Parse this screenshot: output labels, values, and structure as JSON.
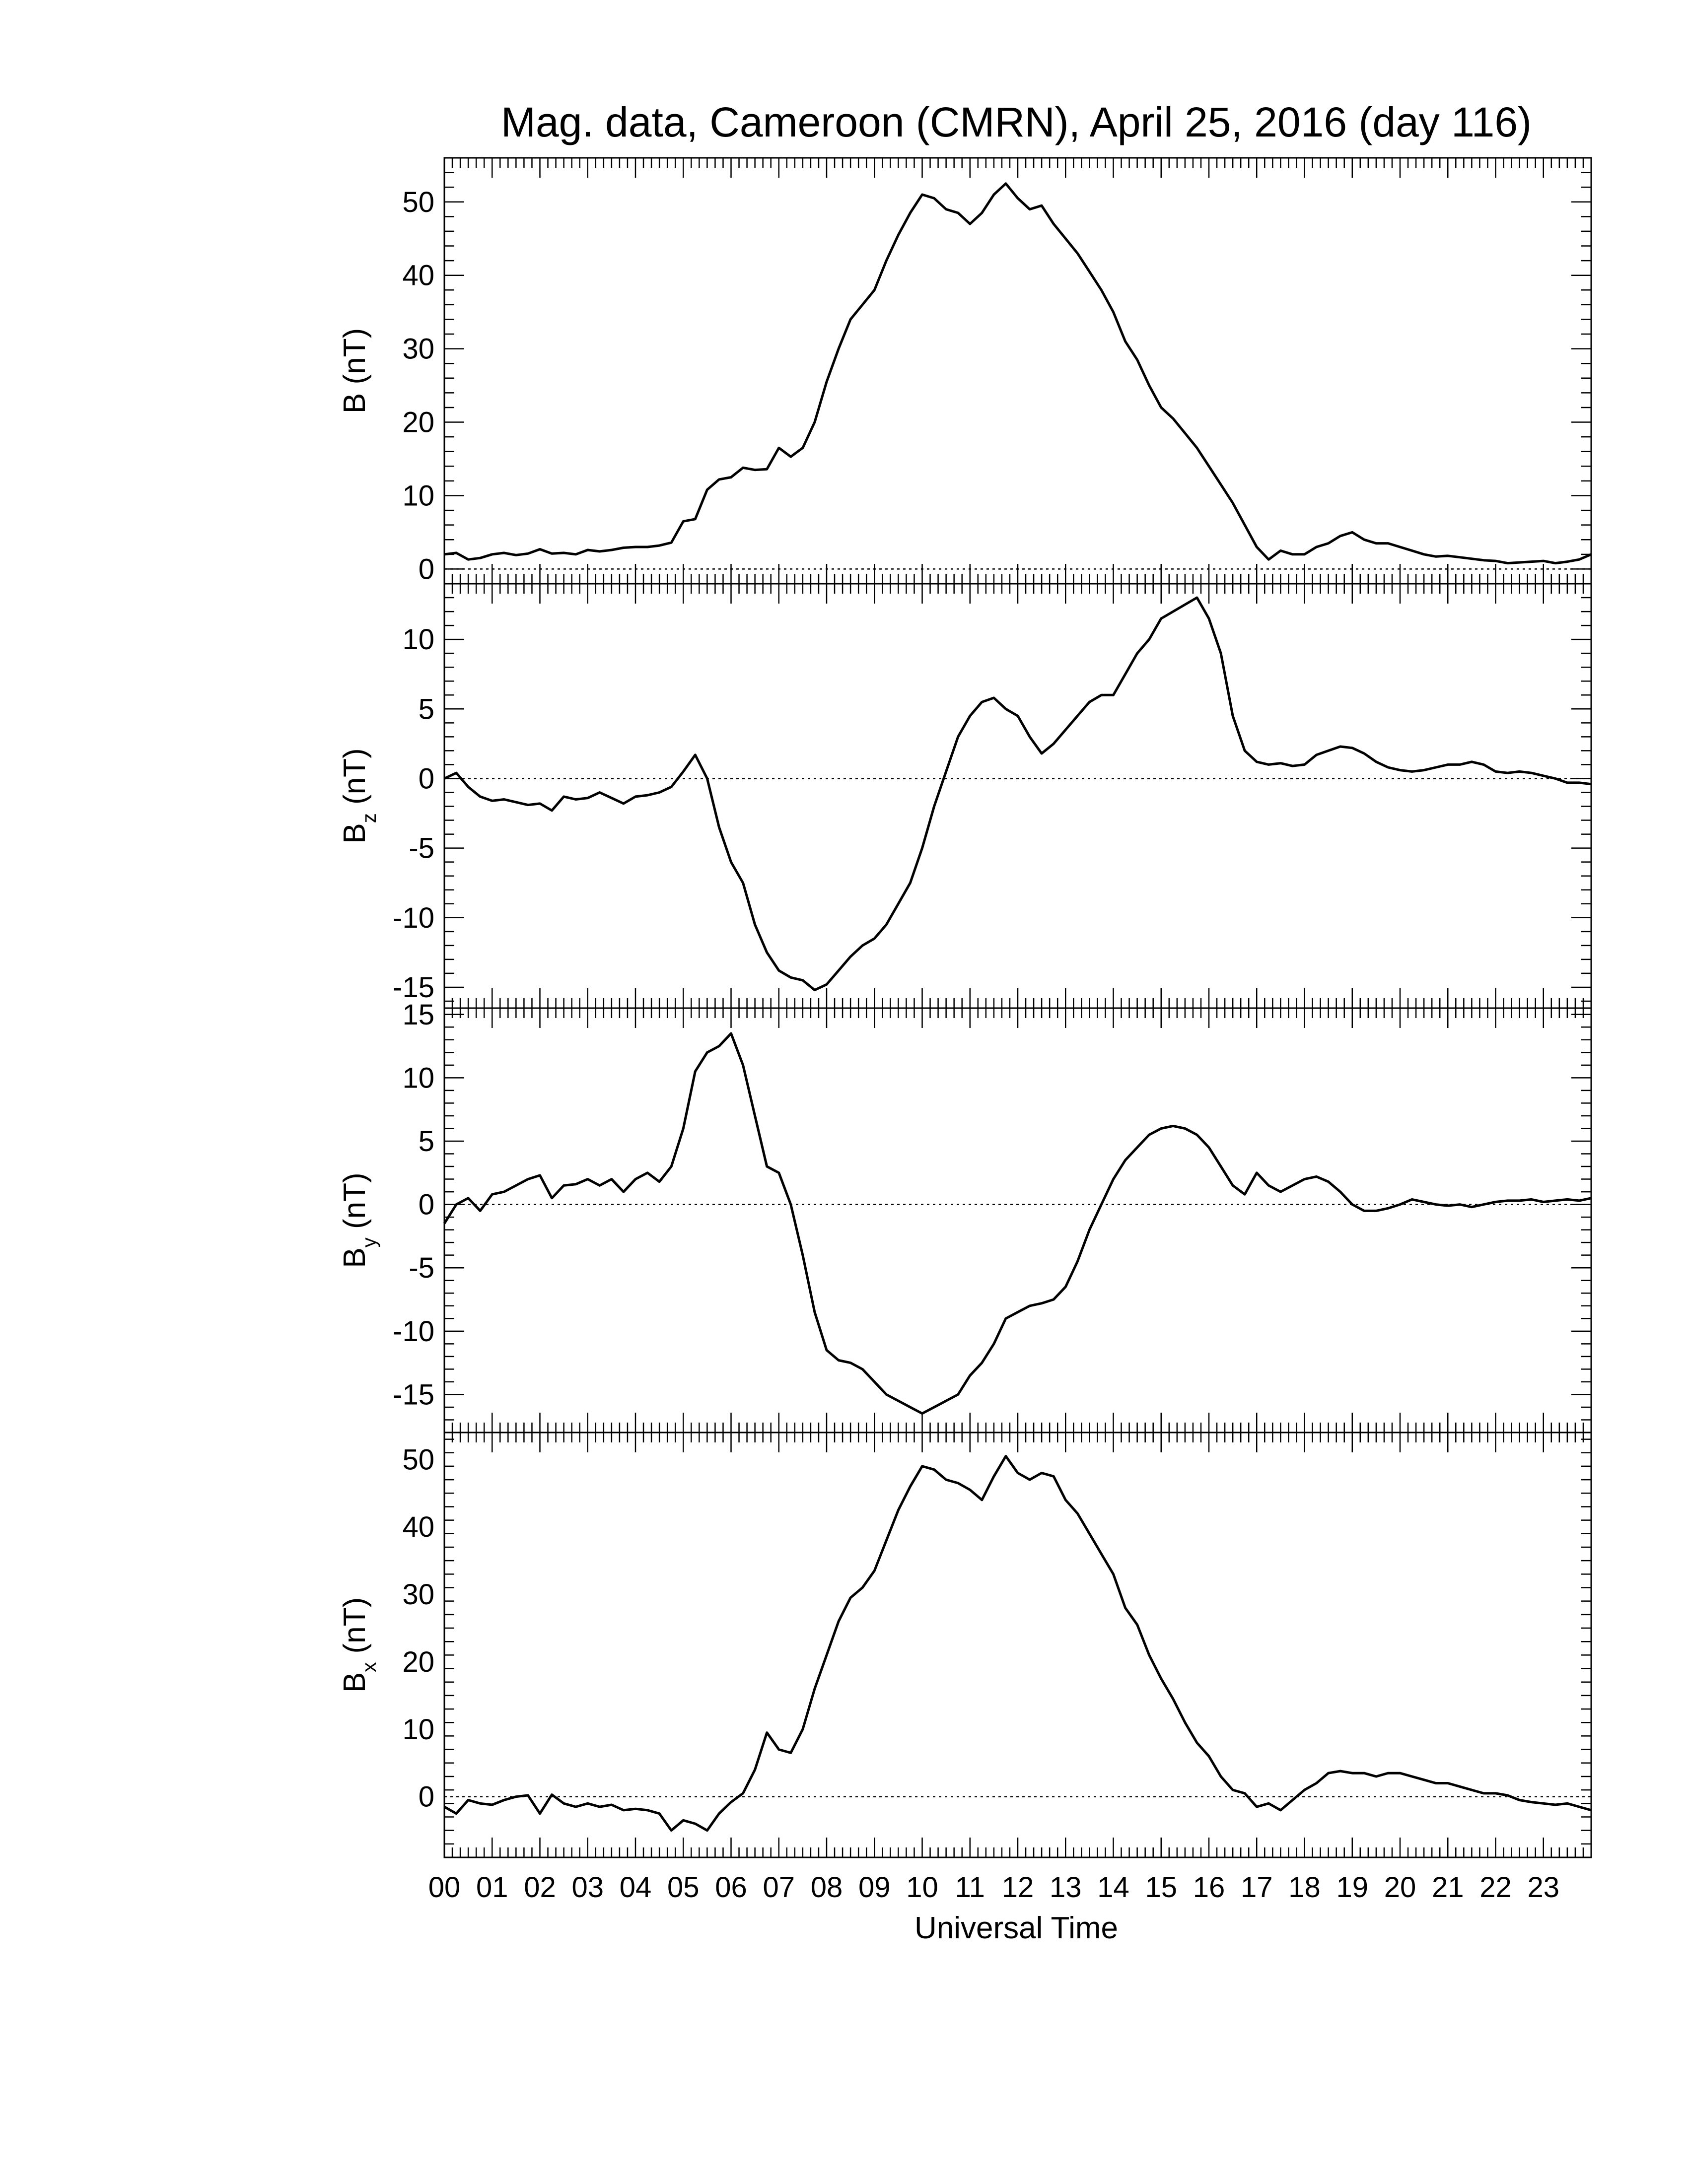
{
  "figure": {
    "title": "Mag. data, Cameroon (CMRN), April 25, 2016 (day 116)",
    "xlabel": "Universal Time",
    "x_tick_labels": [
      "00",
      "01",
      "02",
      "03",
      "04",
      "05",
      "06",
      "07",
      "08",
      "09",
      "10",
      "11",
      "12",
      "13",
      "14",
      "15",
      "16",
      "17",
      "18",
      "19",
      "20",
      "21",
      "22",
      "23"
    ]
  },
  "chart_data": [
    {
      "type": "line",
      "ylabel": "B (nT)",
      "ylabel_main": "B",
      "ylabel_sub": "",
      "ylabel_unit": " (nT)",
      "xlim": [
        0,
        24
      ],
      "ylim": [
        -2,
        56
      ],
      "yticks": [
        0,
        10,
        20,
        30,
        40,
        50
      ],
      "zero_line": true,
      "x": [
        0,
        0.25,
        0.5,
        0.75,
        1,
        1.25,
        1.5,
        1.75,
        2,
        2.25,
        2.5,
        2.75,
        3,
        3.25,
        3.5,
        3.75,
        4,
        4.25,
        4.5,
        4.75,
        5,
        5.25,
        5.5,
        5.75,
        6,
        6.25,
        6.5,
        6.75,
        7,
        7.25,
        7.5,
        7.75,
        8,
        8.25,
        8.5,
        8.75,
        9,
        9.25,
        9.5,
        9.75,
        10,
        10.25,
        10.5,
        10.75,
        11,
        11.25,
        11.5,
        11.75,
        12,
        12.25,
        12.5,
        12.75,
        13,
        13.25,
        13.5,
        13.75,
        14,
        14.25,
        14.5,
        14.75,
        15,
        15.25,
        15.5,
        15.75,
        16,
        16.25,
        16.5,
        16.75,
        17,
        17.25,
        17.5,
        17.75,
        18,
        18.25,
        18.5,
        18.75,
        19,
        19.25,
        19.5,
        19.75,
        20,
        20.25,
        20.5,
        20.75,
        21,
        21.25,
        21.5,
        21.75,
        22,
        22.25,
        22.5,
        22.75,
        23,
        23.25,
        23.5,
        23.75,
        24
      ],
      "series": [
        {
          "values": [
            2.0,
            2.2,
            1.3,
            1.5,
            2.0,
            2.2,
            1.9,
            2.1,
            2.7,
            2.1,
            2.2,
            2.0,
            2.6,
            2.4,
            2.6,
            2.9,
            3.0,
            3.0,
            3.2,
            3.6,
            6.5,
            6.8,
            10.8,
            12.2,
            12.5,
            13.8,
            13.5,
            13.6,
            16.5,
            15.3,
            16.5,
            20.0,
            25.5,
            30.0,
            34.0,
            36.0,
            38.0,
            42.0,
            45.5,
            48.5,
            51.0,
            50.5,
            49.0,
            48.5,
            47.0,
            48.5,
            51.0,
            52.5,
            50.5,
            49.0,
            49.5,
            47.0,
            45.0,
            43.0,
            40.5,
            38.0,
            35.0,
            31.0,
            28.5,
            25.0,
            22.0,
            20.5,
            18.5,
            16.5,
            14.0,
            11.5,
            9.0,
            6.0,
            3.0,
            1.3,
            2.5,
            2.0,
            2.0,
            3.0,
            3.5,
            4.5,
            5.0,
            4.0,
            3.5,
            3.5,
            3.0,
            2.5,
            2.0,
            1.7,
            1.8,
            1.6,
            1.4,
            1.2,
            1.1,
            0.8,
            0.9,
            1.0,
            1.1,
            0.8,
            1.0,
            1.3,
            2.0
          ]
        }
      ]
    },
    {
      "type": "line",
      "ylabel": "Bz (nT)",
      "ylabel_main": "B",
      "ylabel_sub": "z",
      "ylabel_unit": " (nT)",
      "xlim": [
        0,
        24
      ],
      "ylim": [
        -16.5,
        14
      ],
      "yticks": [
        -15,
        -10,
        -5,
        0,
        5,
        10
      ],
      "zero_line": true,
      "x": [
        0,
        0.25,
        0.5,
        0.75,
        1,
        1.25,
        1.5,
        1.75,
        2,
        2.25,
        2.5,
        2.75,
        3,
        3.25,
        3.5,
        3.75,
        4,
        4.25,
        4.5,
        4.75,
        5,
        5.25,
        5.5,
        5.75,
        6,
        6.25,
        6.5,
        6.75,
        7,
        7.25,
        7.5,
        7.75,
        8,
        8.25,
        8.5,
        8.75,
        9,
        9.25,
        9.5,
        9.75,
        10,
        10.25,
        10.5,
        10.75,
        11,
        11.25,
        11.5,
        11.75,
        12,
        12.25,
        12.5,
        12.75,
        13,
        13.25,
        13.5,
        13.75,
        14,
        14.25,
        14.5,
        14.75,
        15,
        15.25,
        15.5,
        15.75,
        16,
        16.25,
        16.5,
        16.75,
        17,
        17.25,
        17.5,
        17.75,
        18,
        18.25,
        18.5,
        18.75,
        19,
        19.25,
        19.5,
        19.75,
        20,
        20.25,
        20.5,
        20.75,
        21,
        21.25,
        21.5,
        21.75,
        22,
        22.25,
        22.5,
        22.75,
        23,
        23.25,
        23.5,
        23.75,
        24
      ],
      "series": [
        {
          "values": [
            0.0,
            0.4,
            -0.6,
            -1.3,
            -1.6,
            -1.5,
            -1.7,
            -1.9,
            -1.8,
            -2.3,
            -1.3,
            -1.5,
            -1.4,
            -1.0,
            -1.4,
            -1.8,
            -1.3,
            -1.2,
            -1.0,
            -0.6,
            0.5,
            1.7,
            0.0,
            -3.5,
            -6.0,
            -7.5,
            -10.5,
            -12.5,
            -13.8,
            -14.3,
            -14.5,
            -15.2,
            -14.8,
            -13.8,
            -12.8,
            -12.0,
            -11.5,
            -10.5,
            -9.0,
            -7.5,
            -5.0,
            -2.0,
            0.5,
            3.0,
            4.5,
            5.5,
            5.8,
            5.0,
            4.5,
            3.0,
            1.8,
            2.5,
            3.5,
            4.5,
            5.5,
            6.0,
            6.0,
            7.5,
            9.0,
            10.0,
            11.5,
            12.0,
            12.5,
            13.0,
            11.5,
            9.0,
            4.5,
            2.0,
            1.2,
            1.0,
            1.1,
            0.9,
            1.0,
            1.7,
            2.0,
            2.3,
            2.2,
            1.8,
            1.2,
            0.8,
            0.6,
            0.5,
            0.6,
            0.8,
            1.0,
            1.0,
            1.2,
            1.0,
            0.5,
            0.4,
            0.5,
            0.4,
            0.2,
            0.0,
            -0.3,
            -0.3,
            -0.4
          ]
        }
      ]
    },
    {
      "type": "line",
      "ylabel": "By (nT)",
      "ylabel_main": "B",
      "ylabel_sub": "y",
      "ylabel_unit": " (nT)",
      "xlim": [
        0,
        24
      ],
      "ylim": [
        -18,
        15.5
      ],
      "yticks": [
        -15,
        -10,
        -5,
        0,
        5,
        10,
        15
      ],
      "zero_line": true,
      "x": [
        0,
        0.25,
        0.5,
        0.75,
        1,
        1.25,
        1.5,
        1.75,
        2,
        2.25,
        2.5,
        2.75,
        3,
        3.25,
        3.5,
        3.75,
        4,
        4.25,
        4.5,
        4.75,
        5,
        5.25,
        5.5,
        5.75,
        6,
        6.25,
        6.5,
        6.75,
        7,
        7.25,
        7.5,
        7.75,
        8,
        8.25,
        8.5,
        8.75,
        9,
        9.25,
        9.5,
        9.75,
        10,
        10.25,
        10.5,
        10.75,
        11,
        11.25,
        11.5,
        11.75,
        12,
        12.25,
        12.5,
        12.75,
        13,
        13.25,
        13.5,
        13.75,
        14,
        14.25,
        14.5,
        14.75,
        15,
        15.25,
        15.5,
        15.75,
        16,
        16.25,
        16.5,
        16.75,
        17,
        17.25,
        17.5,
        17.75,
        18,
        18.25,
        18.5,
        18.75,
        19,
        19.25,
        19.5,
        19.75,
        20,
        20.25,
        20.5,
        20.75,
        21,
        21.25,
        21.5,
        21.75,
        22,
        22.25,
        22.5,
        22.75,
        23,
        23.25,
        23.5,
        23.75,
        24
      ],
      "series": [
        {
          "values": [
            -1.5,
            0.0,
            0.5,
            -0.5,
            0.8,
            1.0,
            1.5,
            2.0,
            2.3,
            0.5,
            1.5,
            1.6,
            2.0,
            1.5,
            2.0,
            1.0,
            2.0,
            2.5,
            1.8,
            3.0,
            6.0,
            10.5,
            12.0,
            12.5,
            13.5,
            11.0,
            7.0,
            3.0,
            2.5,
            0.0,
            -4.0,
            -8.5,
            -11.5,
            -12.3,
            -12.5,
            -13.0,
            -14.0,
            -15.0,
            -15.5,
            -16.0,
            -16.5,
            -16.0,
            -15.5,
            -15.0,
            -13.5,
            -12.5,
            -11.0,
            -9.0,
            -8.5,
            -8.0,
            -7.8,
            -7.5,
            -6.5,
            -4.5,
            -2.0,
            0.0,
            2.0,
            3.5,
            4.5,
            5.5,
            6.0,
            6.2,
            6.0,
            5.5,
            4.5,
            3.0,
            1.5,
            0.8,
            2.5,
            1.5,
            1.0,
            1.5,
            2.0,
            2.2,
            1.8,
            1.0,
            0.0,
            -0.5,
            -0.5,
            -0.3,
            0.0,
            0.4,
            0.2,
            0.0,
            -0.1,
            0.0,
            -0.2,
            0.0,
            0.2,
            0.3,
            0.3,
            0.4,
            0.2,
            0.3,
            0.4,
            0.3,
            0.5
          ]
        }
      ]
    },
    {
      "type": "line",
      "ylabel": "Bx (nT)",
      "ylabel_main": "B",
      "ylabel_sub": "x",
      "ylabel_unit": " (nT)",
      "xlim": [
        0,
        24
      ],
      "ylim": [
        -9,
        54
      ],
      "yticks": [
        0,
        10,
        20,
        30,
        40,
        50
      ],
      "zero_line": true,
      "x": [
        0,
        0.25,
        0.5,
        0.75,
        1,
        1.25,
        1.5,
        1.75,
        2,
        2.25,
        2.5,
        2.75,
        3,
        3.25,
        3.5,
        3.75,
        4,
        4.25,
        4.5,
        4.75,
        5,
        5.25,
        5.5,
        5.75,
        6,
        6.25,
        6.5,
        6.75,
        7,
        7.25,
        7.5,
        7.75,
        8,
        8.25,
        8.5,
        8.75,
        9,
        9.25,
        9.5,
        9.75,
        10,
        10.25,
        10.5,
        10.75,
        11,
        11.25,
        11.5,
        11.75,
        12,
        12.25,
        12.5,
        12.75,
        13,
        13.25,
        13.5,
        13.75,
        14,
        14.25,
        14.5,
        14.75,
        15,
        15.25,
        15.5,
        15.75,
        16,
        16.25,
        16.5,
        16.75,
        17,
        17.25,
        17.5,
        17.75,
        18,
        18.25,
        18.5,
        18.75,
        19,
        19.25,
        19.5,
        19.75,
        20,
        20.25,
        20.5,
        20.75,
        21,
        21.25,
        21.5,
        21.75,
        22,
        22.25,
        22.5,
        22.75,
        23,
        23.25,
        23.5,
        23.75,
        24
      ],
      "series": [
        {
          "values": [
            -1.5,
            -2.5,
            -0.5,
            -1.0,
            -1.2,
            -0.5,
            0.0,
            0.2,
            -2.5,
            0.3,
            -1.0,
            -1.5,
            -1.0,
            -1.5,
            -1.2,
            -2.0,
            -1.8,
            -2.0,
            -2.5,
            -5.0,
            -3.5,
            -4.0,
            -5.0,
            -2.5,
            -0.8,
            0.5,
            4.0,
            9.5,
            7.0,
            6.5,
            10.0,
            16.0,
            21.0,
            26.0,
            29.5,
            31.0,
            33.5,
            38.0,
            42.5,
            46.0,
            49.0,
            48.5,
            47.0,
            46.5,
            45.5,
            44.0,
            47.5,
            50.5,
            48.0,
            47.0,
            48.0,
            47.5,
            44.0,
            42.0,
            39.0,
            36.0,
            33.0,
            28.0,
            25.5,
            21.0,
            17.5,
            14.5,
            11.0,
            8.0,
            6.0,
            3.0,
            1.0,
            0.5,
            -1.5,
            -1.0,
            -2.0,
            -0.5,
            1.0,
            2.0,
            3.5,
            3.8,
            3.5,
            3.5,
            3.0,
            3.5,
            3.5,
            3.0,
            2.5,
            2.0,
            2.0,
            1.5,
            1.0,
            0.5,
            0.5,
            0.2,
            -0.5,
            -0.8,
            -1.0,
            -1.2,
            -1.0,
            -1.5,
            -2.0
          ]
        }
      ]
    }
  ]
}
